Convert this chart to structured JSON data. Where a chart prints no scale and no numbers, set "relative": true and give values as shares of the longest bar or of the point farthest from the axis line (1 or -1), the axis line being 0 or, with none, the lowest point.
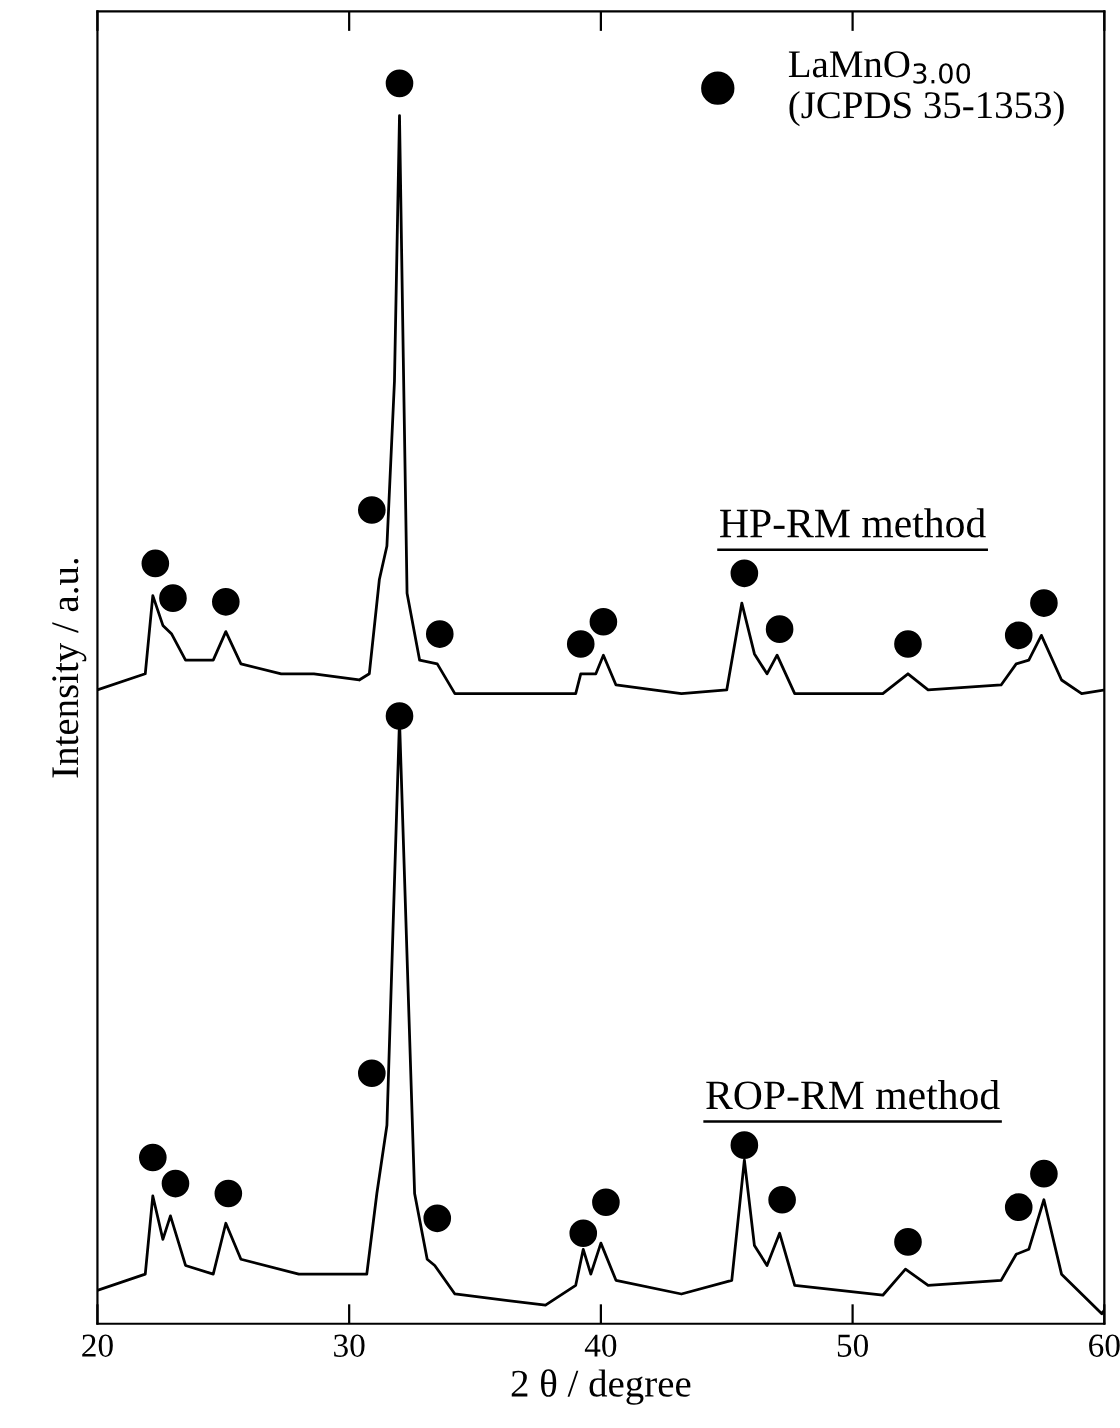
{
  "chart_data": {
    "type": "line",
    "xlabel": "2 θ / degree",
    "ylabel": "Intensity / a.u.",
    "relative": true,
    "xlim": [
      20,
      60
    ],
    "xticks": [
      20,
      30,
      40,
      50,
      60
    ],
    "grid": false,
    "legend": "top right",
    "tick_labels": "x",
    "line_style": "solid",
    "annotations": [
      "HP-RM method",
      "ROP-RM method"
    ],
    "series": [
      {
        "color": "#000000",
        "x": [
          20,
          21.9,
          22.2,
          22.6,
          22.95,
          23.5,
          24.6,
          25.1,
          25.7,
          27.3,
          28.6,
          30.4,
          30.8,
          31.2,
          31.5,
          31.8,
          32.0,
          32.15,
          32.3,
          32.8,
          33.5,
          34.2,
          39.0,
          39.2,
          39.8,
          40.1,
          40.6,
          43.2,
          45.0,
          45.6,
          46.1,
          46.6,
          47.0,
          47.7,
          51.2,
          52.2,
          53.0,
          55.9,
          56.5,
          57.0,
          57.5,
          58.3,
          59.1,
          60
        ],
        "values": [
          0.511,
          0.524,
          0.587,
          0.563,
          0.556,
          0.535,
          0.535,
          0.558,
          0.532,
          0.524,
          0.524,
          0.519,
          0.524,
          0.6,
          0.627,
          0.76,
          0.974,
          0.779,
          0.589,
          0.535,
          0.532,
          0.508,
          0.508,
          0.524,
          0.524,
          0.539,
          0.515,
          0.508,
          0.511,
          0.581,
          0.54,
          0.524,
          0.539,
          0.508,
          0.508,
          0.524,
          0.511,
          0.515,
          0.532,
          0.535,
          0.555,
          0.519,
          0.508,
          0.511
        ]
      },
      {
        "color": "#000000",
        "x": [
          20,
          21.9,
          22.2,
          22.6,
          22.9,
          23.5,
          24.6,
          25.1,
          25.7,
          28.0,
          30.7,
          31.1,
          31.5,
          32.0,
          32.6,
          33.1,
          33.4,
          34.2,
          37.8,
          39.0,
          39.3,
          39.6,
          40.0,
          40.6,
          43.2,
          45.2,
          45.7,
          46.1,
          46.6,
          47.1,
          47.7,
          51.2,
          52.1,
          53.0,
          55.9,
          56.5,
          57.0,
          57.6,
          58.3,
          59.9,
          60
        ],
        "values": [
          0.027,
          0.04,
          0.103,
          0.068,
          0.087,
          0.047,
          0.04,
          0.081,
          0.052,
          0.04,
          0.04,
          0.105,
          0.16,
          0.487,
          0.105,
          0.052,
          0.047,
          0.024,
          0.015,
          0.031,
          0.06,
          0.04,
          0.065,
          0.035,
          0.024,
          0.035,
          0.132,
          0.063,
          0.047,
          0.073,
          0.031,
          0.023,
          0.044,
          0.031,
          0.035,
          0.056,
          0.06,
          0.1,
          0.04,
          0.008,
          0.011
        ]
      },
      {
        "type": "scatter",
        "name": "LaMnO$_{3.00}$\n(JCPDS 35-1353)",
        "color": "#000000",
        "marker": "circle",
        "x": [
          22.3,
          23.0,
          25.1,
          30.9,
          32.0,
          33.6,
          39.2,
          40.1,
          45.7,
          47.1,
          52.2,
          56.6,
          57.6,
          22.2,
          23.1,
          25.2,
          30.9,
          32.0,
          33.5,
          39.3,
          40.2,
          45.7,
          47.2,
          52.2,
          56.6,
          57.6
        ],
        "values": [
          0.613,
          0.585,
          0.582,
          0.656,
          1.0,
          0.556,
          0.548,
          0.566,
          0.605,
          0.56,
          0.548,
          0.555,
          0.581,
          0.134,
          0.113,
          0.105,
          0.202,
          0.49,
          0.085,
          0.073,
          0.098,
          0.144,
          0.1,
          0.066,
          0.094,
          0.121
        ]
      }
    ]
  }
}
